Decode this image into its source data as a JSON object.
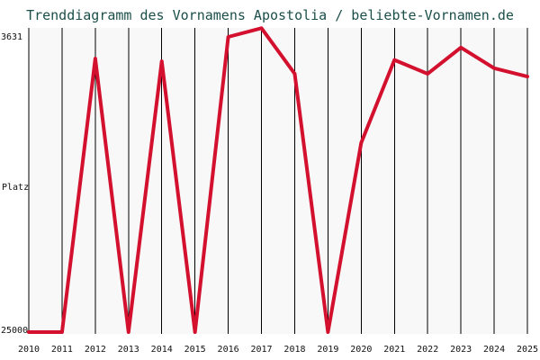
{
  "chart_data": {
    "type": "line",
    "title": "Trenddiagramm des Vornamens Apostolia / beliebte-Vornamen.de",
    "xlabel": "",
    "ylabel": "Platz",
    "y_top_label": "3631",
    "y_bottom_label": "25000",
    "ylim": [
      3631,
      25000
    ],
    "y_inverted": true,
    "x": [
      2010,
      2011,
      2012,
      2013,
      2014,
      2015,
      2016,
      2017,
      2018,
      2019,
      2020,
      2021,
      2022,
      2023,
      2024,
      2025
    ],
    "series": [
      {
        "name": "",
        "values": [
          25000,
          25000,
          5200,
          25000,
          5400,
          25000,
          3631,
          3000,
          6300,
          25000,
          11300,
          5300,
          6300,
          4400,
          5900,
          6500
        ]
      }
    ],
    "grid": "vertical",
    "legend": "none"
  },
  "colors": {
    "title": "#1b4f4a",
    "line": "#d3112e",
    "background": "#f8f8f8",
    "grid": "#000000"
  }
}
